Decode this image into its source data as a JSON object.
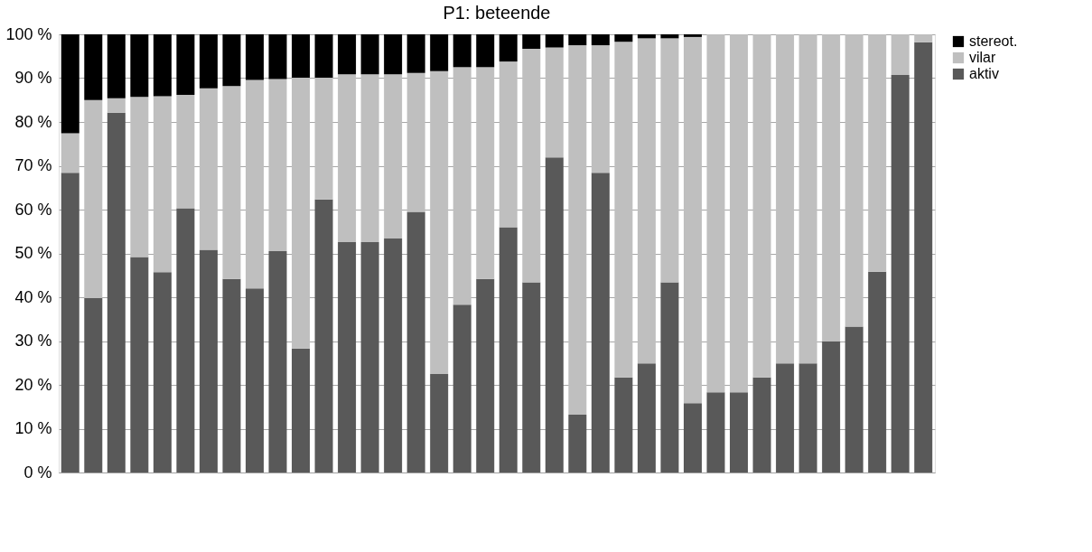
{
  "chart_data": {
    "type": "bar",
    "title": "P1: beteende",
    "stacked": true,
    "categories": [
      null,
      null,
      null,
      null,
      null,
      null,
      null,
      null,
      null,
      null,
      null,
      null,
      null,
      null,
      null,
      null,
      null,
      null,
      null,
      null,
      null,
      null,
      null,
      null,
      null,
      null,
      null,
      null,
      null,
      null,
      null,
      null,
      null,
      null,
      null,
      null,
      null,
      null
    ],
    "series": [
      {
        "name": "aktiv",
        "color": "#595959",
        "values": [
          68.4,
          39.8,
          82.1,
          49.2,
          45.7,
          60.3,
          50.8,
          44.2,
          42.0,
          50.5,
          28.3,
          62.3,
          52.6,
          52.6,
          53.4,
          59.5,
          22.5,
          38.3,
          44.2,
          56.0,
          43.4,
          71.9,
          13.2,
          68.4,
          21.7,
          24.9,
          43.4,
          15.8,
          18.3,
          18.3,
          21.7,
          24.9,
          24.9,
          29.9,
          33.3,
          45.8,
          90.7,
          98.2
        ]
      },
      {
        "name": "vilar",
        "color": "#bfbfbf",
        "values": [
          9.0,
          45.2,
          3.3,
          36.5,
          40.2,
          25.9,
          36.9,
          44.0,
          47.6,
          39.3,
          61.8,
          27.8,
          38.3,
          38.3,
          37.5,
          31.7,
          69.1,
          54.2,
          48.3,
          37.8,
          53.3,
          25.1,
          84.3,
          29.1,
          76.6,
          74.2,
          55.7,
          83.6,
          81.7,
          81.7,
          78.3,
          75.1,
          75.1,
          70.1,
          66.7,
          54.2,
          9.3,
          1.8
        ]
      },
      {
        "name": "stereot.",
        "color": "#000000",
        "values": [
          22.6,
          15.0,
          14.6,
          14.3,
          14.1,
          13.8,
          12.3,
          11.8,
          10.4,
          10.2,
          9.9,
          9.9,
          9.1,
          9.1,
          9.1,
          8.8,
          8.4,
          7.5,
          7.5,
          6.2,
          3.3,
          3.0,
          2.5,
          2.5,
          1.7,
          0.9,
          0.9,
          0.6,
          0,
          0,
          0,
          0,
          0,
          0,
          0,
          0,
          0,
          0
        ]
      }
    ],
    "ylim": [
      0,
      100
    ],
    "yticks": [
      {
        "value": 0,
        "label": "0 %"
      },
      {
        "value": 10,
        "label": "10 %"
      },
      {
        "value": 20,
        "label": "20 %"
      },
      {
        "value": 30,
        "label": "30 %"
      },
      {
        "value": 40,
        "label": "40 %"
      },
      {
        "value": 50,
        "label": "50 %"
      },
      {
        "value": 60,
        "label": "60 %"
      },
      {
        "value": 70,
        "label": "70 %"
      },
      {
        "value": 80,
        "label": "80 %"
      },
      {
        "value": 90,
        "label": "90 %"
      },
      {
        "value": 100,
        "label": "100 %"
      }
    ],
    "grid": "y",
    "legend": "right",
    "tick_labels": "y"
  }
}
